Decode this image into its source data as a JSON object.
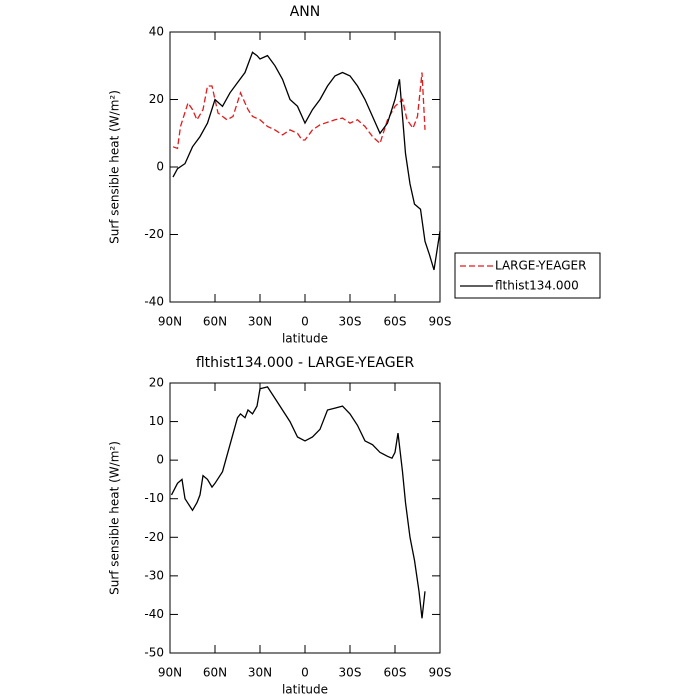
{
  "chart_data": [
    {
      "type": "line",
      "title": "ANN",
      "xlabel": "latitude",
      "ylabel": "Surf sensible heat (W/m²)",
      "xlim": [
        90,
        -90
      ],
      "xticks": [
        {
          "value": 90,
          "label": "90N"
        },
        {
          "value": 60,
          "label": "60N"
        },
        {
          "value": 30,
          "label": "30N"
        },
        0,
        {
          "value": -30,
          "label": "30S"
        },
        {
          "value": -60,
          "label": "60S"
        },
        {
          "value": -90,
          "label": "90S"
        }
      ],
      "ylim": [
        -40,
        40
      ],
      "yticks": [
        -40,
        -20,
        0,
        20,
        40
      ],
      "legend": "outside-right",
      "series": [
        {
          "name": "LARGE-YEAGER",
          "color": "#e41a1c",
          "dash": true,
          "x": [
            88,
            85,
            83,
            78,
            75,
            72,
            68,
            65,
            62,
            58,
            52,
            48,
            43,
            38,
            35,
            30,
            25,
            20,
            15,
            10,
            5,
            2,
            0,
            -5,
            -10,
            -20,
            -25,
            -30,
            -35,
            -40,
            -45,
            -50,
            -55,
            -60,
            -65,
            -68,
            -72,
            -75,
            -78,
            -80
          ],
          "values": [
            6,
            5.5,
            12,
            19,
            17,
            14,
            17,
            24,
            24,
            16,
            14,
            15,
            22,
            17,
            15,
            14,
            12,
            11,
            9.5,
            11,
            10,
            8,
            8,
            11,
            12.5,
            14,
            14.5,
            13,
            14,
            12,
            9,
            7,
            14,
            18,
            20,
            14,
            11.5,
            15,
            28,
            11
          ]
        },
        {
          "name": "flthist134.000",
          "color": "#000000",
          "dash": false,
          "x": [
            88,
            85,
            80,
            75,
            70,
            65,
            60,
            55,
            50,
            45,
            40,
            35,
            32,
            30,
            25,
            20,
            15,
            10,
            5,
            0,
            -5,
            -10,
            -15,
            -20,
            -25,
            -30,
            -35,
            -40,
            -45,
            -50,
            -55,
            -60,
            -63,
            -67,
            -70,
            -73,
            -77,
            -80,
            -83,
            -86,
            -90
          ],
          "values": [
            -3,
            -0.5,
            1,
            6,
            9,
            13,
            20,
            18,
            22,
            25,
            28,
            34,
            33,
            32,
            33,
            30,
            26,
            20,
            18,
            13,
            17,
            20,
            24,
            27,
            28,
            27,
            24,
            20,
            15,
            10,
            13,
            20,
            26,
            4,
            -5,
            -11,
            -12.5,
            -22,
            -26,
            -30.5,
            -19
          ]
        }
      ]
    },
    {
      "type": "line",
      "title": "flthist134.000 - LARGE-YEAGER",
      "xlabel": "latitude",
      "ylabel": "Surf sensible heat (W/m²)",
      "xlim": [
        90,
        -90
      ],
      "xticks": [
        {
          "value": 90,
          "label": "90N"
        },
        {
          "value": 60,
          "label": "60N"
        },
        {
          "value": 30,
          "label": "30N"
        },
        0,
        {
          "value": -30,
          "label": "30S"
        },
        {
          "value": -60,
          "label": "60S"
        },
        {
          "value": -90,
          "label": "90S"
        }
      ],
      "ylim": [
        -50,
        20
      ],
      "yticks": [
        -50,
        -40,
        -30,
        -20,
        -10,
        0,
        10,
        20
      ],
      "series": [
        {
          "color": "#000000",
          "dash": false,
          "x": [
            89,
            85,
            82,
            80,
            75,
            72,
            70,
            68,
            65,
            62,
            60,
            55,
            50,
            45,
            43,
            40,
            38,
            35,
            32,
            30,
            25,
            20,
            15,
            10,
            5,
            0,
            -5,
            -10,
            -15,
            -20,
            -25,
            -30,
            -35,
            -40,
            -45,
            -50,
            -55,
            -58,
            -60,
            -62,
            -65,
            -67,
            -70,
            -73,
            -76,
            -78,
            -80
          ],
          "values": [
            -9,
            -6,
            -5,
            -10,
            -13,
            -11,
            -9,
            -4,
            -5,
            -7,
            -6,
            -3,
            4,
            11,
            12,
            11,
            13,
            12,
            14,
            18.5,
            19,
            16,
            13,
            10,
            6,
            5,
            6,
            8,
            13,
            13.5,
            14,
            12,
            9,
            5,
            4,
            2,
            1,
            0.5,
            2,
            7,
            -3,
            -11,
            -20,
            -26,
            -34,
            -41,
            -34
          ]
        }
      ]
    }
  ]
}
